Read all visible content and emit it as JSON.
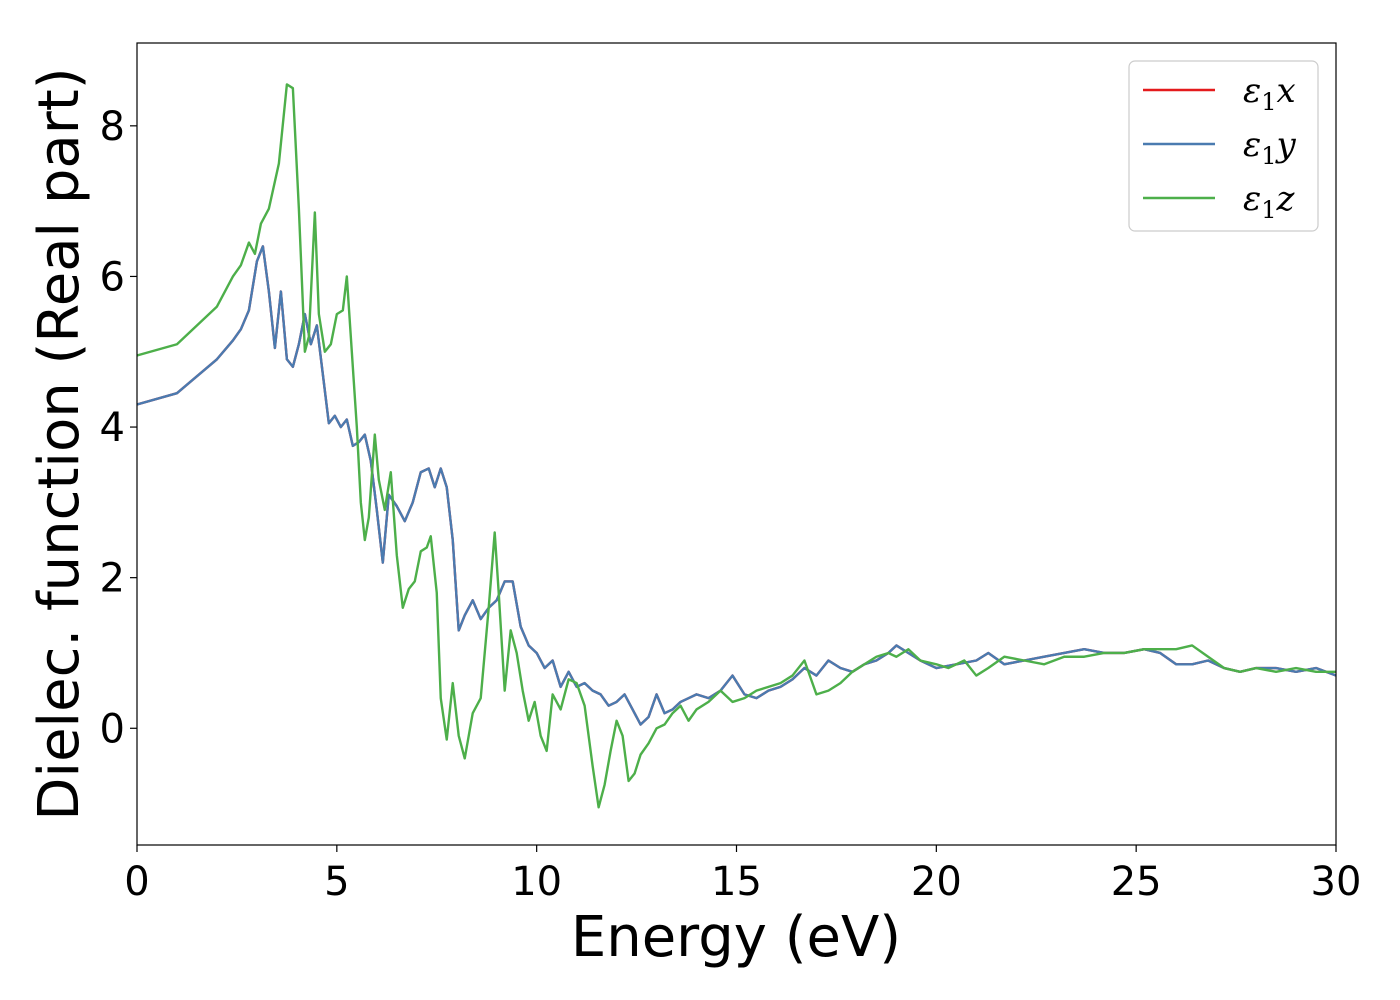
{
  "chart_data": {
    "type": "line",
    "xlabel": "Energy (eV)",
    "ylabel": "Dielec. function (Real part)",
    "xlim": [
      0,
      30
    ],
    "ylim": [
      -1.55,
      9.1
    ],
    "xticks": [
      0,
      5,
      10,
      15,
      20,
      25,
      30
    ],
    "yticks": [
      0,
      2,
      4,
      6,
      8
    ],
    "grid": false,
    "legend_position": "top-right",
    "series": [
      {
        "name": "ε1x",
        "symbol": "ε",
        "subscript": "1",
        "suffix": "x",
        "color": "#e41a1c",
        "x": [
          0,
          1,
          2,
          2.4,
          2.6,
          2.8,
          3.0,
          3.15,
          3.3,
          3.45,
          3.6,
          3.75,
          3.9,
          4.05,
          4.2,
          4.35,
          4.5,
          4.65,
          4.8,
          4.95,
          5.1,
          5.25,
          5.4,
          5.55,
          5.7,
          5.85,
          6.0,
          6.15,
          6.3,
          6.5,
          6.7,
          6.9,
          7.1,
          7.3,
          7.45,
          7.6,
          7.75,
          7.9,
          8.05,
          8.2,
          8.4,
          8.6,
          8.8,
          9.0,
          9.2,
          9.4,
          9.6,
          9.8,
          10.0,
          10.2,
          10.4,
          10.6,
          10.8,
          11.0,
          11.2,
          11.4,
          11.6,
          11.8,
          12.0,
          12.2,
          12.4,
          12.6,
          12.8,
          13.0,
          13.2,
          13.4,
          13.6,
          13.8,
          14.0,
          14.3,
          14.6,
          14.9,
          15.2,
          15.5,
          15.8,
          16.1,
          16.4,
          16.7,
          17.0,
          17.3,
          17.6,
          17.9,
          18.2,
          18.5,
          18.8,
          19.0,
          19.3,
          19.6,
          20.0,
          20.5,
          21.0,
          21.3,
          21.7,
          22.2,
          22.7,
          23.2,
          23.7,
          24.2,
          24.7,
          25.2,
          25.6,
          26.0,
          26.4,
          26.8,
          27.2,
          27.6,
          28.0,
          28.5,
          29.0,
          29.5,
          30.0
        ],
        "y": [
          4.3,
          4.45,
          4.9,
          5.15,
          5.3,
          5.55,
          6.2,
          6.4,
          5.8,
          5.05,
          5.8,
          4.9,
          4.8,
          5.1,
          5.5,
          5.1,
          5.35,
          4.7,
          4.05,
          4.15,
          4.0,
          4.1,
          3.75,
          3.8,
          3.9,
          3.55,
          2.9,
          2.2,
          3.1,
          2.95,
          2.75,
          3.0,
          3.4,
          3.45,
          3.2,
          3.45,
          3.2,
          2.5,
          1.3,
          1.5,
          1.7,
          1.45,
          1.6,
          1.7,
          1.95,
          1.95,
          1.35,
          1.1,
          1.0,
          0.8,
          0.9,
          0.55,
          0.75,
          0.55,
          0.6,
          0.5,
          0.45,
          0.3,
          0.35,
          0.45,
          0.25,
          0.05,
          0.15,
          0.45,
          0.2,
          0.25,
          0.35,
          0.4,
          0.45,
          0.4,
          0.5,
          0.7,
          0.45,
          0.4,
          0.5,
          0.55,
          0.65,
          0.8,
          0.7,
          0.9,
          0.8,
          0.75,
          0.85,
          0.9,
          1.0,
          1.1,
          1.0,
          0.9,
          0.8,
          0.85,
          0.9,
          1.0,
          0.85,
          0.9,
          0.95,
          1.0,
          1.05,
          1.0,
          1.0,
          1.05,
          1.0,
          0.85,
          0.85,
          0.9,
          0.8,
          0.75,
          0.8,
          0.8,
          0.75,
          0.8,
          0.7
        ]
      },
      {
        "name": "ε1y",
        "symbol": "ε",
        "subscript": "1",
        "suffix": "y",
        "color": "#4a7bb0",
        "x": [
          0,
          1,
          2,
          2.4,
          2.6,
          2.8,
          3.0,
          3.15,
          3.3,
          3.45,
          3.6,
          3.75,
          3.9,
          4.05,
          4.2,
          4.35,
          4.5,
          4.65,
          4.8,
          4.95,
          5.1,
          5.25,
          5.4,
          5.55,
          5.7,
          5.85,
          6.0,
          6.15,
          6.3,
          6.5,
          6.7,
          6.9,
          7.1,
          7.3,
          7.45,
          7.6,
          7.75,
          7.9,
          8.05,
          8.2,
          8.4,
          8.6,
          8.8,
          9.0,
          9.2,
          9.4,
          9.6,
          9.8,
          10.0,
          10.2,
          10.4,
          10.6,
          10.8,
          11.0,
          11.2,
          11.4,
          11.6,
          11.8,
          12.0,
          12.2,
          12.4,
          12.6,
          12.8,
          13.0,
          13.2,
          13.4,
          13.6,
          13.8,
          14.0,
          14.3,
          14.6,
          14.9,
          15.2,
          15.5,
          15.8,
          16.1,
          16.4,
          16.7,
          17.0,
          17.3,
          17.6,
          17.9,
          18.2,
          18.5,
          18.8,
          19.0,
          19.3,
          19.6,
          20.0,
          20.5,
          21.0,
          21.3,
          21.7,
          22.2,
          22.7,
          23.2,
          23.7,
          24.2,
          24.7,
          25.2,
          25.6,
          26.0,
          26.4,
          26.8,
          27.2,
          27.6,
          28.0,
          28.5,
          29.0,
          29.5,
          30.0
        ],
        "y": [
          4.3,
          4.45,
          4.9,
          5.15,
          5.3,
          5.55,
          6.2,
          6.4,
          5.8,
          5.05,
          5.8,
          4.9,
          4.8,
          5.1,
          5.5,
          5.1,
          5.35,
          4.7,
          4.05,
          4.15,
          4.0,
          4.1,
          3.75,
          3.8,
          3.9,
          3.55,
          2.9,
          2.2,
          3.1,
          2.95,
          2.75,
          3.0,
          3.4,
          3.45,
          3.2,
          3.45,
          3.2,
          2.5,
          1.3,
          1.5,
          1.7,
          1.45,
          1.6,
          1.7,
          1.95,
          1.95,
          1.35,
          1.1,
          1.0,
          0.8,
          0.9,
          0.55,
          0.75,
          0.55,
          0.6,
          0.5,
          0.45,
          0.3,
          0.35,
          0.45,
          0.25,
          0.05,
          0.15,
          0.45,
          0.2,
          0.25,
          0.35,
          0.4,
          0.45,
          0.4,
          0.5,
          0.7,
          0.45,
          0.4,
          0.5,
          0.55,
          0.65,
          0.8,
          0.7,
          0.9,
          0.8,
          0.75,
          0.85,
          0.9,
          1.0,
          1.1,
          1.0,
          0.9,
          0.8,
          0.85,
          0.9,
          1.0,
          0.85,
          0.9,
          0.95,
          1.0,
          1.05,
          1.0,
          1.0,
          1.05,
          1.0,
          0.85,
          0.85,
          0.9,
          0.8,
          0.75,
          0.8,
          0.8,
          0.75,
          0.8,
          0.7
        ]
      },
      {
        "name": "ε1z",
        "symbol": "ε",
        "subscript": "1",
        "suffix": "z",
        "color": "#4daf4a",
        "x": [
          0,
          1,
          2,
          2.4,
          2.6,
          2.8,
          2.95,
          3.1,
          3.3,
          3.55,
          3.75,
          3.9,
          4.05,
          4.2,
          4.3,
          4.45,
          4.55,
          4.7,
          4.85,
          5.0,
          5.15,
          5.25,
          5.35,
          5.5,
          5.6,
          5.7,
          5.8,
          5.95,
          6.05,
          6.2,
          6.35,
          6.5,
          6.65,
          6.8,
          6.95,
          7.1,
          7.25,
          7.35,
          7.5,
          7.6,
          7.75,
          7.9,
          8.05,
          8.2,
          8.4,
          8.6,
          8.8,
          8.95,
          9.05,
          9.2,
          9.35,
          9.5,
          9.65,
          9.8,
          9.95,
          10.1,
          10.25,
          10.4,
          10.6,
          10.8,
          11.0,
          11.2,
          11.4,
          11.55,
          11.7,
          11.85,
          12.0,
          12.15,
          12.3,
          12.45,
          12.6,
          12.8,
          13.0,
          13.2,
          13.4,
          13.6,
          13.8,
          14.0,
          14.3,
          14.6,
          14.9,
          15.2,
          15.5,
          15.8,
          16.1,
          16.4,
          16.7,
          17.0,
          17.3,
          17.6,
          17.9,
          18.2,
          18.5,
          18.8,
          19.0,
          19.3,
          19.6,
          20.0,
          20.3,
          20.7,
          21.0,
          21.3,
          21.7,
          22.2,
          22.7,
          23.2,
          23.7,
          24.2,
          24.7,
          25.2,
          25.6,
          26.0,
          26.4,
          26.8,
          27.2,
          27.6,
          28.0,
          28.5,
          29.0,
          29.5,
          30.0
        ],
        "y": [
          4.95,
          5.1,
          5.6,
          6.0,
          6.15,
          6.45,
          6.3,
          6.7,
          6.9,
          7.5,
          8.55,
          8.5,
          6.9,
          5.0,
          5.2,
          6.85,
          5.5,
          5.0,
          5.1,
          5.5,
          5.55,
          6.0,
          5.2,
          4.0,
          3.0,
          2.5,
          2.8,
          3.9,
          3.3,
          2.9,
          3.4,
          2.3,
          1.6,
          1.85,
          1.95,
          2.35,
          2.4,
          2.55,
          1.8,
          0.4,
          -0.15,
          0.6,
          -0.1,
          -0.4,
          0.2,
          0.4,
          1.6,
          2.6,
          1.8,
          0.5,
          1.3,
          1.0,
          0.5,
          0.1,
          0.35,
          -0.1,
          -0.3,
          0.45,
          0.25,
          0.65,
          0.6,
          0.3,
          -0.5,
          -1.05,
          -0.75,
          -0.3,
          0.1,
          -0.1,
          -0.7,
          -0.6,
          -0.35,
          -0.2,
          0.0,
          0.05,
          0.2,
          0.3,
          0.1,
          0.25,
          0.35,
          0.5,
          0.35,
          0.4,
          0.5,
          0.55,
          0.6,
          0.7,
          0.9,
          0.45,
          0.5,
          0.6,
          0.75,
          0.85,
          0.95,
          1.0,
          0.95,
          1.05,
          0.9,
          0.85,
          0.8,
          0.9,
          0.7,
          0.8,
          0.95,
          0.9,
          0.85,
          0.95,
          0.95,
          1.0,
          1.0,
          1.05,
          1.05,
          1.05,
          1.1,
          0.95,
          0.8,
          0.75,
          0.8,
          0.75,
          0.8,
          0.75,
          0.75
        ]
      }
    ]
  }
}
